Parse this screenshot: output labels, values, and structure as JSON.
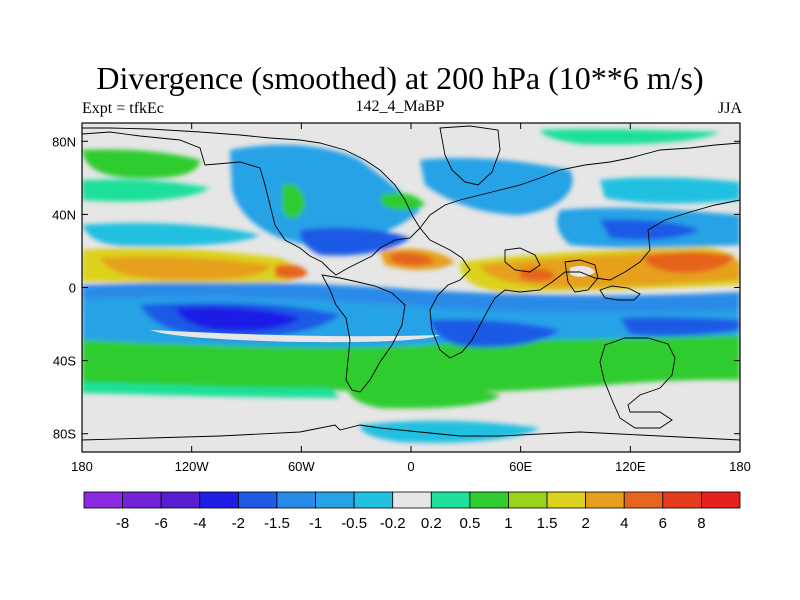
{
  "title": "Divergence (smoothed) at 200 hPa (10**6 m/s)",
  "experiment": "Expt = tfkEc",
  "case_name": "142_4_MaBP",
  "season": "JJA",
  "map": {
    "lon_range": [
      -180,
      180
    ],
    "lat_range": [
      -90,
      90
    ],
    "x_ticks": [
      {
        "lon": -180,
        "label": "180"
      },
      {
        "lon": -120,
        "label": "120W"
      },
      {
        "lon": -60,
        "label": "60W"
      },
      {
        "lon": 0,
        "label": "0"
      },
      {
        "lon": 60,
        "label": "60E"
      },
      {
        "lon": 120,
        "label": "120E"
      },
      {
        "lon": 180,
        "label": "180"
      }
    ],
    "y_ticks": [
      {
        "lat": 80,
        "label": "80N"
      },
      {
        "lat": 40,
        "label": "40N"
      },
      {
        "lat": 0,
        "label": "0"
      },
      {
        "lat": -40,
        "label": "40S"
      },
      {
        "lat": -80,
        "label": "80S"
      }
    ],
    "neutral_color": "#e6e6e6"
  },
  "colorbar": {
    "levels": [
      "-8",
      "-6",
      "-4",
      "-2",
      "-1.5",
      "-1",
      "-0.5",
      "-0.2",
      "0.2",
      "0.5",
      "1",
      "1.5",
      "2",
      "4",
      "6",
      "8"
    ],
    "colors": [
      "#8a2be2",
      "#7322d8",
      "#5a1ed2",
      "#1e1ee6",
      "#1e5ae6",
      "#2a8ae8",
      "#28a2e6",
      "#22c0e0",
      "#e6e6e6",
      "#1ee09a",
      "#2ecc2e",
      "#9ad21e",
      "#dcd21e",
      "#e6a01e",
      "#e6641e",
      "#e63c1e",
      "#e61e1e"
    ]
  }
}
